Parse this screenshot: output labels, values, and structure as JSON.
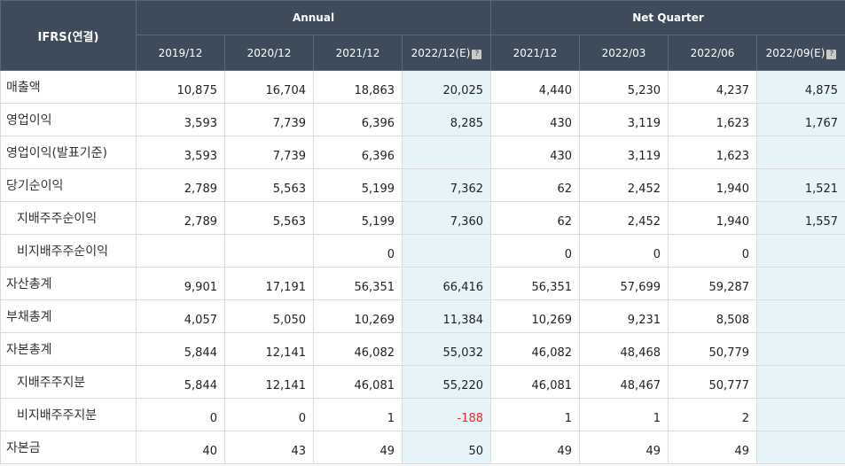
{
  "table": {
    "corner_label": "IFRS(연결)",
    "group_annual": "Annual",
    "group_quarter": "Net Quarter",
    "estimate_icon": "question-icon",
    "periods": [
      "2019/12",
      "2020/12",
      "2021/12",
      "2022/12(E)",
      "2021/12",
      "2022/03",
      "2022/06",
      "2022/09(E)"
    ],
    "rows": [
      {
        "label": "매출액",
        "values": [
          "10,875",
          "16,704",
          "18,863",
          "20,025",
          "4,440",
          "5,230",
          "4,237",
          "4,875"
        ]
      },
      {
        "label": "영업이익",
        "values": [
          "3,593",
          "7,739",
          "6,396",
          "8,285",
          "430",
          "3,119",
          "1,623",
          "1,767"
        ]
      },
      {
        "label": "영업이익(발표기준)",
        "values": [
          "3,593",
          "7,739",
          "6,396",
          "",
          "430",
          "3,119",
          "1,623",
          ""
        ]
      },
      {
        "label": "당기순이익",
        "values": [
          "2,789",
          "5,563",
          "5,199",
          "7,362",
          "62",
          "2,452",
          "1,940",
          "1,521"
        ]
      },
      {
        "label": "지배주주순이익",
        "values": [
          "2,789",
          "5,563",
          "5,199",
          "7,360",
          "62",
          "2,452",
          "1,940",
          "1,557"
        ]
      },
      {
        "label": "비지배주주순이익",
        "values": [
          "",
          "",
          "0",
          "",
          "0",
          "0",
          "0",
          ""
        ]
      },
      {
        "label": "자산총계",
        "values": [
          "9,901",
          "17,191",
          "56,351",
          "66,416",
          "56,351",
          "57,699",
          "59,287",
          ""
        ]
      },
      {
        "label": "부채총계",
        "values": [
          "4,057",
          "5,050",
          "10,269",
          "11,384",
          "10,269",
          "9,231",
          "8,508",
          ""
        ]
      },
      {
        "label": "자본총계",
        "values": [
          "5,844",
          "12,141",
          "46,082",
          "55,032",
          "46,082",
          "48,468",
          "50,779",
          ""
        ]
      },
      {
        "label": "지배주주지분",
        "values": [
          "5,844",
          "12,141",
          "46,081",
          "55,220",
          "46,081",
          "48,467",
          "50,777",
          ""
        ]
      },
      {
        "label": "비지배주주지분",
        "values": [
          "0",
          "0",
          "1",
          "-188",
          "1",
          "1",
          "2",
          ""
        ]
      },
      {
        "label": "자본금",
        "values": [
          "40",
          "43",
          "49",
          "50",
          "49",
          "49",
          "49",
          ""
        ]
      }
    ]
  }
}
